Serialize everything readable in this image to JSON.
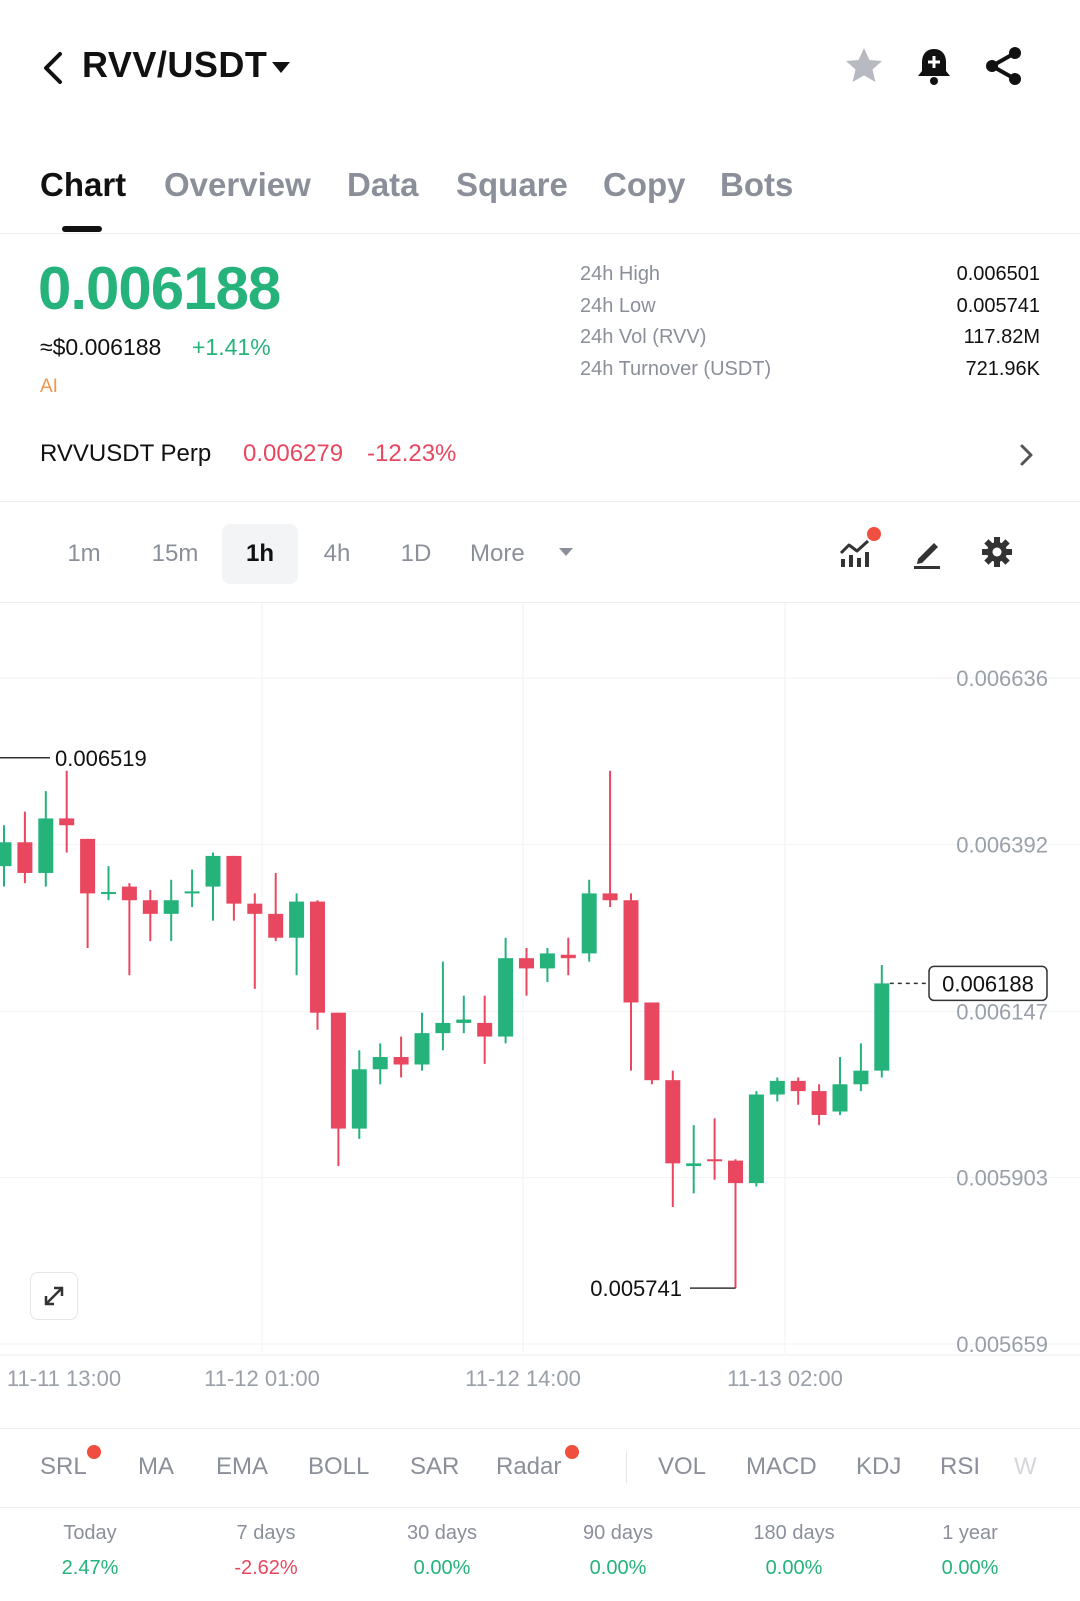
{
  "header": {
    "pair": "RVV/USDT",
    "icons": [
      "back-arrow-icon",
      "dropdown-caret-icon",
      "star-icon",
      "bell-add-icon",
      "share-icon"
    ]
  },
  "tabs": [
    {
      "label": "Chart",
      "active": true
    },
    {
      "label": "Overview",
      "active": false
    },
    {
      "label": "Data",
      "active": false
    },
    {
      "label": "Square",
      "active": false
    },
    {
      "label": "Copy",
      "active": false
    },
    {
      "label": "Bots",
      "active": false
    }
  ],
  "ticker": {
    "last_price": "0.006188",
    "usd_price": "≈$0.006188",
    "change": "+1.41%",
    "ai_label": "AI",
    "stats": [
      {
        "label": "24h High",
        "value": "0.006501"
      },
      {
        "label": "24h Low",
        "value": "0.005741"
      },
      {
        "label": "24h Vol (RVV)",
        "value": "117.82M"
      },
      {
        "label": "24h Turnover (USDT)",
        "value": "721.96K"
      }
    ]
  },
  "perp": {
    "name": "RVVUSDT Perp",
    "price": "0.006279",
    "change": "-12.23%"
  },
  "intervals": {
    "items": [
      "1m",
      "15m",
      "1h",
      "4h",
      "1D"
    ],
    "active": "1h",
    "more": "More"
  },
  "colors": {
    "up": "#25b37b",
    "down": "#e8475f",
    "muted": "#8a8f99",
    "dot": "#f04e3e"
  },
  "chart_data": {
    "type": "candlestick",
    "interval": "1h",
    "y_ticks": [
      "0.006636",
      "0.006392",
      "0.006147",
      "0.005903",
      "0.005659"
    ],
    "x_ticks": [
      "11-11 13:00",
      "11-12 01:00",
      "11-12 14:00",
      "11-13 02:00"
    ],
    "high_marker": "0.006519",
    "low_marker": "0.005741",
    "last_price_label": "0.006188",
    "candles": [
      {
        "o": 0.00636,
        "h": 0.00642,
        "l": 0.00633,
        "c": 0.006395
      },
      {
        "o": 0.006395,
        "h": 0.00644,
        "l": 0.006335,
        "c": 0.00635
      },
      {
        "o": 0.00635,
        "h": 0.00647,
        "l": 0.00633,
        "c": 0.00643
      },
      {
        "o": 0.00643,
        "h": 0.0065,
        "l": 0.00638,
        "c": 0.00642
      },
      {
        "o": 0.0064,
        "h": 0.0064,
        "l": 0.00624,
        "c": 0.00632
      },
      {
        "o": 0.00632,
        "h": 0.00636,
        "l": 0.00631,
        "c": 0.006322
      },
      {
        "o": 0.00633,
        "h": 0.006335,
        "l": 0.0062,
        "c": 0.00631
      },
      {
        "o": 0.00631,
        "h": 0.006325,
        "l": 0.00625,
        "c": 0.00629
      },
      {
        "o": 0.00629,
        "h": 0.00634,
        "l": 0.00625,
        "c": 0.00631
      },
      {
        "o": 0.00632,
        "h": 0.006355,
        "l": 0.0063,
        "c": 0.006323
      },
      {
        "o": 0.00633,
        "h": 0.00638,
        "l": 0.00628,
        "c": 0.006375
      },
      {
        "o": 0.006375,
        "h": 0.006375,
        "l": 0.00628,
        "c": 0.006305
      },
      {
        "o": 0.006305,
        "h": 0.00632,
        "l": 0.00618,
        "c": 0.00629
      },
      {
        "o": 0.00629,
        "h": 0.00635,
        "l": 0.00625,
        "c": 0.006255
      },
      {
        "o": 0.006255,
        "h": 0.00632,
        "l": 0.0062,
        "c": 0.006308
      },
      {
        "o": 0.006308,
        "h": 0.00631,
        "l": 0.00612,
        "c": 0.006145
      },
      {
        "o": 0.006145,
        "h": 0.006145,
        "l": 0.00592,
        "c": 0.005975
      },
      {
        "o": 0.005975,
        "h": 0.00609,
        "l": 0.00596,
        "c": 0.006062
      },
      {
        "o": 0.006062,
        "h": 0.0061,
        "l": 0.00604,
        "c": 0.00608
      },
      {
        "o": 0.00608,
        "h": 0.00611,
        "l": 0.00605,
        "c": 0.006069
      },
      {
        "o": 0.006069,
        "h": 0.006145,
        "l": 0.00606,
        "c": 0.006115
      },
      {
        "o": 0.006115,
        "h": 0.00622,
        "l": 0.00609,
        "c": 0.00613
      },
      {
        "o": 0.00613,
        "h": 0.00617,
        "l": 0.006115,
        "c": 0.006135
      },
      {
        "o": 0.00613,
        "h": 0.00617,
        "l": 0.00607,
        "c": 0.00611
      },
      {
        "o": 0.00611,
        "h": 0.006255,
        "l": 0.0061,
        "c": 0.006225
      },
      {
        "o": 0.006225,
        "h": 0.00624,
        "l": 0.00617,
        "c": 0.00621
      },
      {
        "o": 0.00621,
        "h": 0.00624,
        "l": 0.00619,
        "c": 0.006232
      },
      {
        "o": 0.00623,
        "h": 0.006255,
        "l": 0.0062,
        "c": 0.006225
      },
      {
        "o": 0.006232,
        "h": 0.00634,
        "l": 0.00622,
        "c": 0.00632
      },
      {
        "o": 0.00632,
        "h": 0.0065,
        "l": 0.0063,
        "c": 0.00631
      },
      {
        "o": 0.00631,
        "h": 0.00632,
        "l": 0.00606,
        "c": 0.00616
      },
      {
        "o": 0.00616,
        "h": 0.00616,
        "l": 0.00604,
        "c": 0.006046
      },
      {
        "o": 0.006046,
        "h": 0.00606,
        "l": 0.00586,
        "c": 0.005924
      },
      {
        "o": 0.00592,
        "h": 0.00598,
        "l": 0.00588,
        "c": 0.005924
      },
      {
        "o": 0.00593,
        "h": 0.00599,
        "l": 0.0059,
        "c": 0.005928
      },
      {
        "o": 0.005928,
        "h": 0.00593,
        "l": 0.005741,
        "c": 0.005895
      },
      {
        "o": 0.005895,
        "h": 0.00603,
        "l": 0.00589,
        "c": 0.006025
      },
      {
        "o": 0.006025,
        "h": 0.00605,
        "l": 0.006015,
        "c": 0.006045
      },
      {
        "o": 0.006045,
        "h": 0.00605,
        "l": 0.00601,
        "c": 0.00603
      },
      {
        "o": 0.00603,
        "h": 0.00604,
        "l": 0.00598,
        "c": 0.005995
      },
      {
        "o": 0.006,
        "h": 0.00608,
        "l": 0.005995,
        "c": 0.00604
      },
      {
        "o": 0.00604,
        "h": 0.0061,
        "l": 0.00603,
        "c": 0.00606
      },
      {
        "o": 0.00606,
        "h": 0.006215,
        "l": 0.00605,
        "c": 0.006188
      }
    ]
  },
  "indicators": {
    "main": [
      {
        "label": "SRL",
        "dot": true
      },
      {
        "label": "MA",
        "dot": false
      },
      {
        "label": "EMA",
        "dot": false
      },
      {
        "label": "BOLL",
        "dot": false
      },
      {
        "label": "SAR",
        "dot": false
      },
      {
        "label": "Radar",
        "dot": true
      }
    ],
    "sub": [
      "VOL",
      "MACD",
      "KDJ",
      "RSI",
      "W"
    ]
  },
  "performance": [
    {
      "label": "Today",
      "value": "2.47%",
      "direction": "up"
    },
    {
      "label": "7 days",
      "value": "-2.62%",
      "direction": "down"
    },
    {
      "label": "30 days",
      "value": "0.00%",
      "direction": "up"
    },
    {
      "label": "90 days",
      "value": "0.00%",
      "direction": "up"
    },
    {
      "label": "180 days",
      "value": "0.00%",
      "direction": "up"
    },
    {
      "label": "1 year",
      "value": "0.00%",
      "direction": "up"
    }
  ]
}
